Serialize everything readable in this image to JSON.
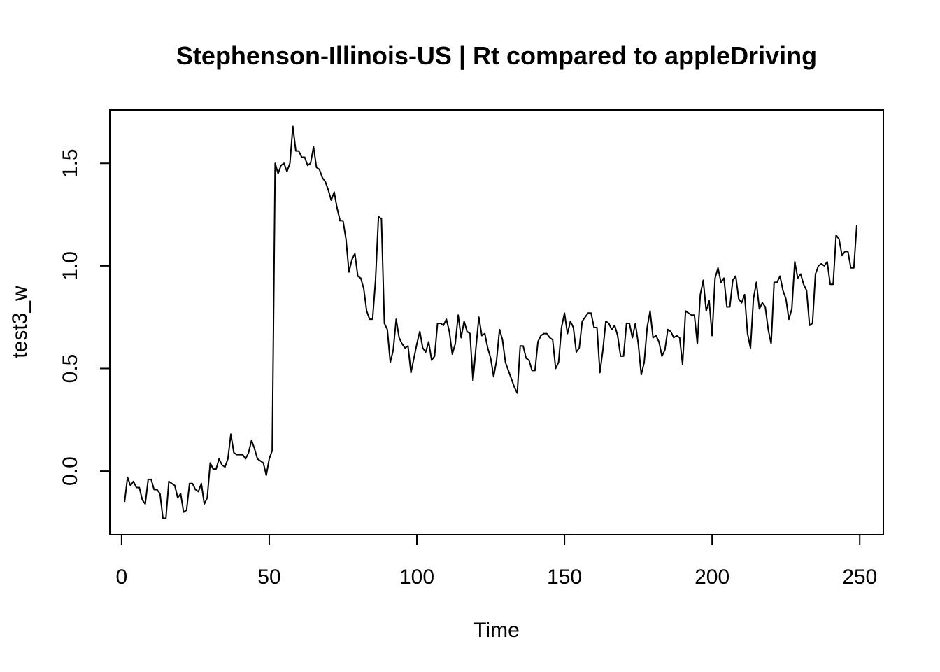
{
  "chart_data": {
    "type": "line",
    "title": "Stephenson-Illinois-US | Rt compared to appleDriving",
    "xlabel": "Time",
    "ylabel": "test3_w",
    "xlim": [
      -4,
      258
    ],
    "ylim": [
      -0.31,
      1.76
    ],
    "xticks": [
      0,
      50,
      100,
      150,
      200,
      250
    ],
    "xtick_labels": [
      "0",
      "50",
      "100",
      "150",
      "200",
      "250"
    ],
    "yticks": [
      0.0,
      0.5,
      1.0,
      1.5
    ],
    "ytick_labels": [
      "0.0",
      "0.5",
      "1.0",
      "1.5"
    ],
    "grid": false,
    "line_color": "#000000",
    "series": [
      {
        "x_start": 1,
        "x_step": 1,
        "values": [
          -0.15,
          -0.03,
          -0.07,
          -0.05,
          -0.08,
          -0.08,
          -0.14,
          -0.16,
          -0.04,
          -0.04,
          -0.09,
          -0.09,
          -0.11,
          -0.23,
          -0.23,
          -0.05,
          -0.06,
          -0.07,
          -0.13,
          -0.11,
          -0.2,
          -0.19,
          -0.06,
          -0.06,
          -0.09,
          -0.1,
          -0.06,
          -0.16,
          -0.13,
          0.04,
          0.01,
          0.01,
          0.06,
          0.03,
          0.02,
          0.06,
          0.18,
          0.09,
          0.08,
          0.08,
          0.08,
          0.06,
          0.09,
          0.15,
          0.11,
          0.06,
          0.05,
          0.04,
          -0.02,
          0.06,
          0.1,
          1.5,
          1.45,
          1.49,
          1.5,
          1.46,
          1.5,
          1.68,
          1.56,
          1.56,
          1.53,
          1.53,
          1.49,
          1.5,
          1.58,
          1.48,
          1.47,
          1.43,
          1.41,
          1.37,
          1.32,
          1.36,
          1.28,
          1.22,
          1.22,
          1.13,
          0.97,
          1.03,
          1.06,
          0.95,
          0.94,
          0.89,
          0.78,
          0.74,
          0.74,
          0.93,
          1.24,
          1.23,
          0.72,
          0.69,
          0.53,
          0.59,
          0.74,
          0.65,
          0.62,
          0.6,
          0.61,
          0.48,
          0.55,
          0.62,
          0.68,
          0.6,
          0.58,
          0.63,
          0.54,
          0.56,
          0.72,
          0.72,
          0.71,
          0.74,
          0.68,
          0.57,
          0.62,
          0.76,
          0.65,
          0.73,
          0.68,
          0.67,
          0.44,
          0.6,
          0.75,
          0.66,
          0.67,
          0.6,
          0.55,
          0.46,
          0.54,
          0.69,
          0.64,
          0.53,
          0.49,
          0.45,
          0.41,
          0.38,
          0.61,
          0.61,
          0.55,
          0.54,
          0.49,
          0.49,
          0.63,
          0.66,
          0.67,
          0.67,
          0.65,
          0.64,
          0.5,
          0.53,
          0.7,
          0.77,
          0.67,
          0.73,
          0.7,
          0.58,
          0.6,
          0.73,
          0.75,
          0.77,
          0.77,
          0.7,
          0.7,
          0.48,
          0.59,
          0.73,
          0.72,
          0.69,
          0.71,
          0.66,
          0.56,
          0.56,
          0.72,
          0.72,
          0.65,
          0.72,
          0.62,
          0.47,
          0.53,
          0.7,
          0.78,
          0.65,
          0.66,
          0.63,
          0.56,
          0.59,
          0.69,
          0.68,
          0.65,
          0.66,
          0.65,
          0.52,
          0.78,
          0.77,
          0.76,
          0.76,
          0.62,
          0.86,
          0.93,
          0.78,
          0.83,
          0.66,
          0.94,
          0.99,
          0.92,
          0.94,
          0.8,
          0.8,
          0.93,
          0.95,
          0.84,
          0.82,
          0.86,
          0.67,
          0.6,
          0.84,
          0.92,
          0.79,
          0.82,
          0.8,
          0.69,
          0.62,
          0.92,
          0.92,
          0.95,
          0.88,
          0.84,
          0.74,
          0.79,
          1.02,
          0.94,
          0.96,
          0.91,
          0.88,
          0.71,
          0.72,
          0.96,
          1.0,
          1.01,
          1.0,
          1.02,
          0.91,
          0.91,
          1.15,
          1.13,
          1.05,
          1.07,
          1.07,
          0.99,
          0.99,
          1.2
        ]
      }
    ]
  }
}
